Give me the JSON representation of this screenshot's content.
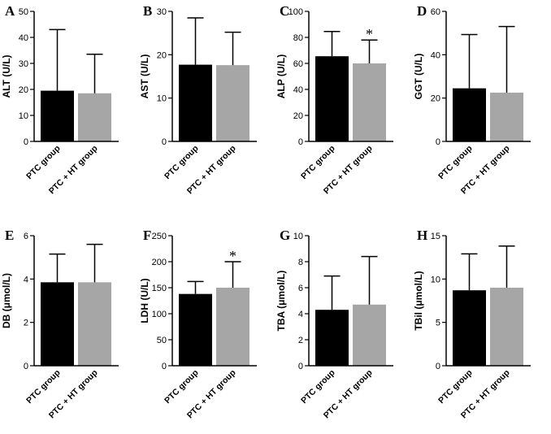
{
  "colors": {
    "bar_ptc": "#000000",
    "bar_ptc_ht": "#a6a6a6",
    "axis": "#000000"
  },
  "chart_data": [
    {
      "panel": "A",
      "type": "bar",
      "ylabel": "ALT (U/L)",
      "ylim": [
        0,
        50
      ],
      "ticks": [
        "0",
        "10",
        "20",
        "30",
        "40",
        "50"
      ],
      "categories": [
        "PTC group",
        "PTC + HT group"
      ],
      "values": [
        19.5,
        18.5
      ],
      "errors": [
        23.5,
        15
      ],
      "annotations": [
        "",
        ""
      ]
    },
    {
      "panel": "B",
      "type": "bar",
      "ylabel": "AST (U/L)",
      "ylim": [
        0,
        30
      ],
      "ticks": [
        "0",
        "10",
        "20",
        "30"
      ],
      "categories": [
        "PTC group",
        "PTC + HT group"
      ],
      "values": [
        17.7,
        17.6
      ],
      "errors": [
        10.8,
        7.6
      ],
      "annotations": [
        "",
        ""
      ]
    },
    {
      "panel": "C",
      "type": "bar",
      "ylabel": "ALP (U/L)",
      "ylim": [
        0,
        100
      ],
      "ticks": [
        "0",
        "20",
        "40",
        "60",
        "80",
        "100"
      ],
      "categories": [
        "PTC group",
        "PTC + HT group"
      ],
      "values": [
        65.5,
        60
      ],
      "errors": [
        19,
        18
      ],
      "annotations": [
        "",
        "*"
      ]
    },
    {
      "panel": "D",
      "type": "bar",
      "ylabel": "GGT (U/L)",
      "ylim": [
        0,
        60
      ],
      "ticks": [
        "0",
        "20",
        "40",
        "60"
      ],
      "categories": [
        "PTC group",
        "PTC + HT group"
      ],
      "values": [
        24.5,
        22.5
      ],
      "errors": [
        24.8,
        30.5
      ],
      "annotations": [
        "",
        ""
      ]
    },
    {
      "panel": "E",
      "type": "bar",
      "ylabel": "DB (μmol/L)",
      "ylim": [
        0,
        6
      ],
      "ticks": [
        "0",
        "2",
        "4",
        "6"
      ],
      "categories": [
        "PTC group",
        "PTC + HT group"
      ],
      "values": [
        3.85,
        3.85
      ],
      "errors": [
        1.3,
        1.75
      ],
      "annotations": [
        "",
        ""
      ]
    },
    {
      "panel": "F",
      "type": "bar",
      "ylabel": "LDH (U/L)",
      "ylim": [
        0,
        250
      ],
      "ticks": [
        "0",
        "50",
        "100",
        "150",
        "200",
        "250"
      ],
      "categories": [
        "PTC group",
        "PTC + HT group"
      ],
      "values": [
        138,
        150
      ],
      "errors": [
        24,
        50
      ],
      "annotations": [
        "",
        "*"
      ]
    },
    {
      "panel": "G",
      "type": "bar",
      "ylabel": "TBA (μmol/L)",
      "ylim": [
        0,
        10
      ],
      "ticks": [
        "0",
        "2",
        "4",
        "6",
        "8",
        "10"
      ],
      "categories": [
        "PTC group",
        "PTC + HT group"
      ],
      "values": [
        4.3,
        4.7
      ],
      "errors": [
        2.6,
        3.7
      ],
      "annotations": [
        "",
        ""
      ]
    },
    {
      "panel": "H",
      "type": "bar",
      "ylabel": "TBil (μmol/L)",
      "ylim": [
        0,
        15
      ],
      "ticks": [
        "0",
        "5",
        "10",
        "15"
      ],
      "categories": [
        "PTC group",
        "PTC + HT group"
      ],
      "values": [
        8.7,
        9.0
      ],
      "errors": [
        4.2,
        4.8
      ],
      "annotations": [
        "",
        ""
      ]
    }
  ]
}
